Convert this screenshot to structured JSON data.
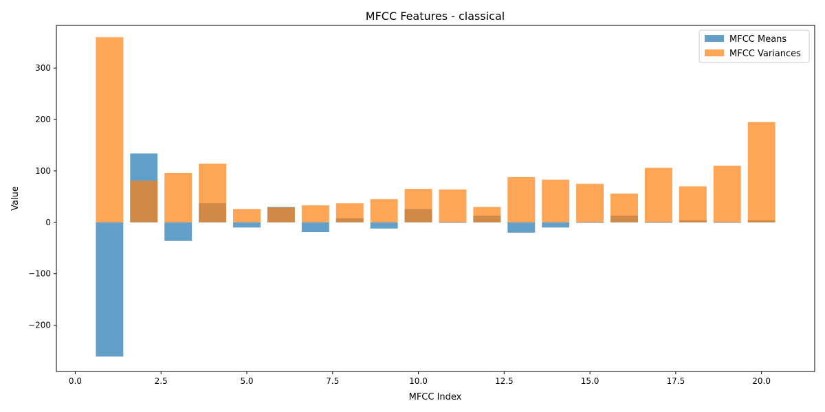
{
  "chart_data": {
    "type": "bar",
    "title": "MFCC Features - classical",
    "xlabel": "MFCC Index",
    "ylabel": "Value",
    "xlim": [
      -0.55,
      21.55
    ],
    "ylim": [
      -290,
      383
    ],
    "xticks": [
      0.0,
      2.5,
      5.0,
      7.5,
      10.0,
      12.5,
      15.0,
      17.5,
      20.0
    ],
    "xtick_labels": [
      "0.0",
      "2.5",
      "5.0",
      "7.5",
      "10.0",
      "12.5",
      "15.0",
      "17.5",
      "20.0"
    ],
    "yticks": [
      -200,
      -100,
      0,
      100,
      200,
      300
    ],
    "ytick_labels": [
      "−200",
      "−100",
      "0",
      "100",
      "200",
      "300"
    ],
    "grid": false,
    "legend_position": "top-right",
    "x": [
      1,
      2,
      3,
      4,
      5,
      6,
      7,
      8,
      9,
      10,
      11,
      12,
      13,
      14,
      15,
      16,
      17,
      18,
      19,
      20
    ],
    "bar_width": 0.8,
    "series": [
      {
        "name": "MFCC Means",
        "color": "#1f77b4",
        "opacity": 0.7,
        "values": [
          -261,
          134,
          -36,
          37,
          -10,
          30,
          -19,
          8,
          -12,
          26,
          -1,
          13,
          -20,
          -10,
          -1,
          13,
          -1,
          4,
          -1,
          4
        ]
      },
      {
        "name": "MFCC Variances",
        "color": "#ff7f0e",
        "opacity": 0.7,
        "values": [
          360,
          81,
          96,
          114,
          26,
          29,
          33,
          37,
          45,
          65,
          64,
          30,
          88,
          83,
          75,
          56,
          106,
          70,
          110,
          195
        ]
      }
    ]
  }
}
